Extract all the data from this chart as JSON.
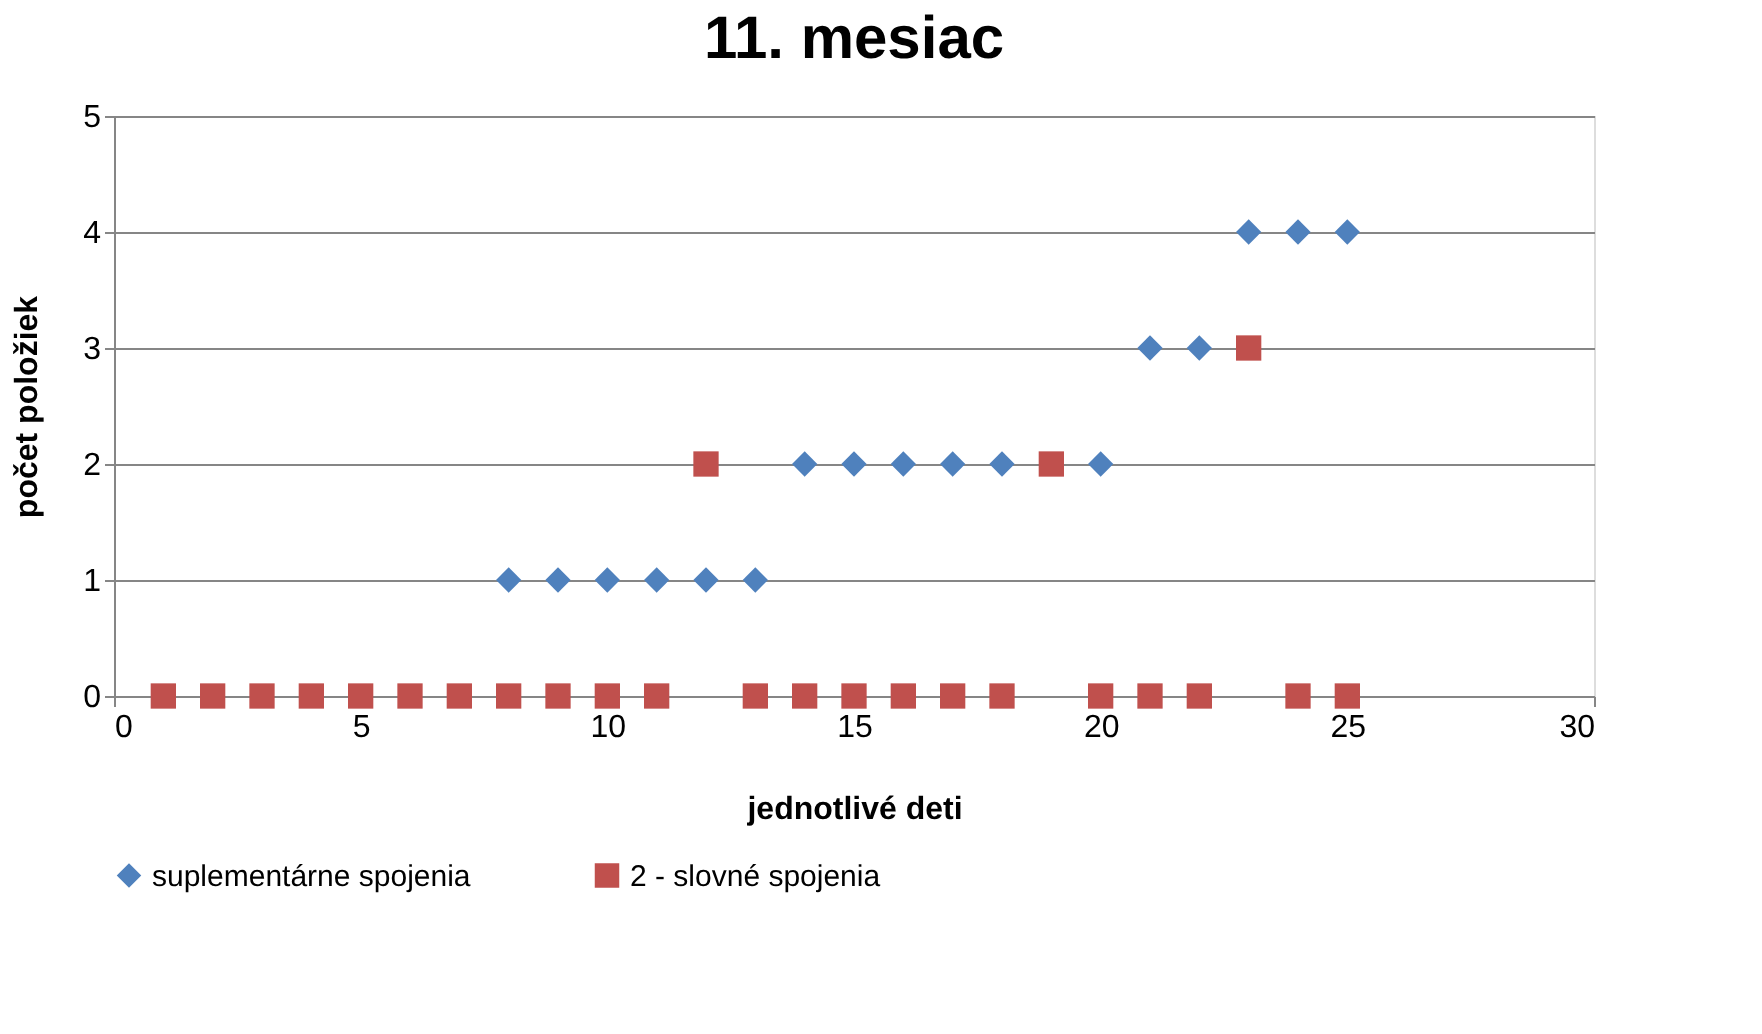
{
  "chart_data": {
    "type": "scatter",
    "title": "11. mesiac",
    "xlabel": "jednotlivé deti",
    "ylabel": "počet položiek",
    "x": [
      1,
      2,
      3,
      4,
      5,
      6,
      7,
      8,
      9,
      10,
      11,
      12,
      13,
      14,
      15,
      16,
      17,
      18,
      19,
      20,
      21,
      22,
      23,
      24,
      25
    ],
    "series": [
      {
        "name": "suplementárne spojenia",
        "color": "#4f81bd",
        "marker": "diamond",
        "values": [
          null,
          null,
          null,
          null,
          null,
          null,
          null,
          1,
          1,
          1,
          1,
          1,
          1,
          2,
          2,
          2,
          2,
          2,
          null,
          2,
          3,
          3,
          4,
          4,
          4
        ]
      },
      {
        "name": "2 - slovné spojenia",
        "color": "#c0504d",
        "marker": "square",
        "values": [
          0,
          0,
          0,
          0,
          0,
          0,
          0,
          0,
          0,
          0,
          0,
          2,
          0,
          0,
          0,
          0,
          0,
          0,
          2,
          0,
          0,
          0,
          3,
          0,
          0
        ]
      }
    ],
    "xlim": [
      0,
      30
    ],
    "xticks": [
      0,
      5,
      10,
      15,
      20,
      25,
      30
    ],
    "ylim": [
      0,
      5
    ],
    "yticks": [
      0,
      1,
      2,
      3,
      4,
      5
    ],
    "grid": "y",
    "legend": "bottom"
  }
}
